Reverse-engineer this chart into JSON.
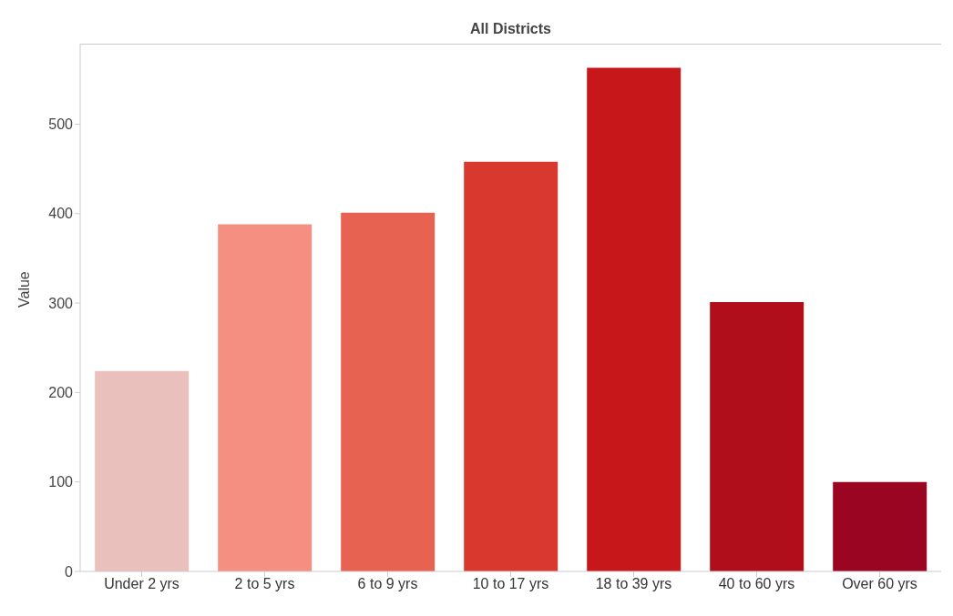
{
  "chart_data": {
    "type": "bar",
    "title": "All Districts",
    "ylabel": "Value",
    "categories": [
      "Under 2 yrs",
      "2 to 5 yrs",
      "6 to 9 yrs",
      "10 to 17 yrs",
      "18 to 39 yrs",
      "40 to 60 yrs",
      "Over 60 yrs"
    ],
    "values": [
      224,
      388,
      401,
      458,
      563,
      301,
      100
    ],
    "colors": [
      "#e9c0bc",
      "#f58f82",
      "#e86252",
      "#d9382e",
      "#c8171b",
      "#b10e1c",
      "#9a0521"
    ],
    "ylim": [
      0,
      590
    ],
    "yticks": [
      0,
      100,
      200,
      300,
      400,
      500
    ],
    "grid": false
  }
}
